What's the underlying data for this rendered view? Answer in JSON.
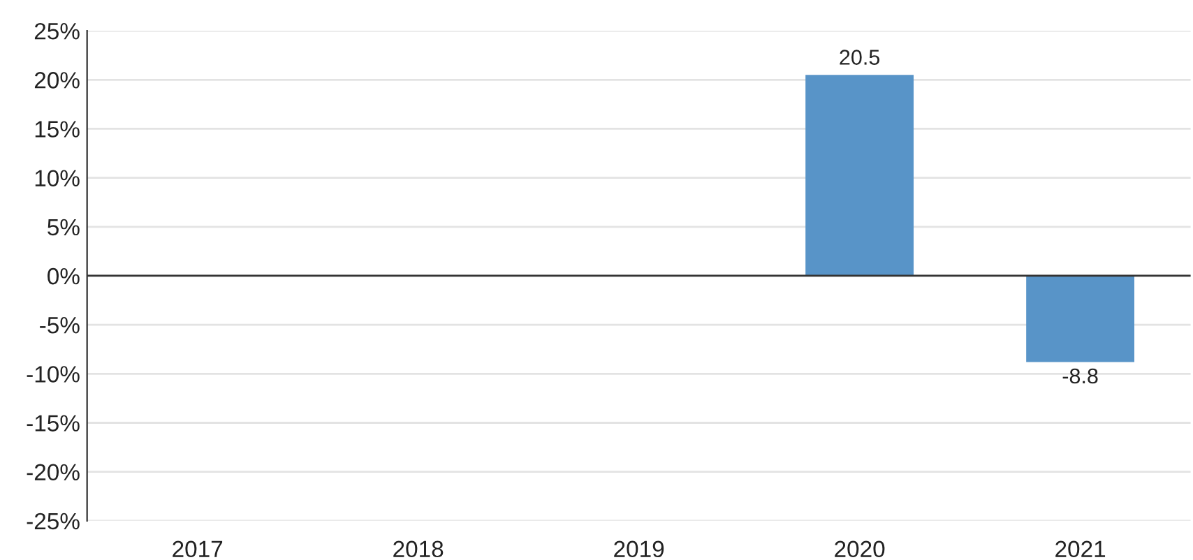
{
  "chart_data": {
    "type": "bar",
    "categories": [
      "2017",
      "2018",
      "2019",
      "2020",
      "2021"
    ],
    "values": [
      null,
      null,
      null,
      20.5,
      -8.8
    ],
    "color": "#5894c8",
    "data_labels": true,
    "ylim": [
      -25,
      25
    ],
    "yticks": [
      {
        "value": -25,
        "label": "-25%"
      },
      {
        "value": -20,
        "label": "-20%"
      },
      {
        "value": -15,
        "label": "-15%"
      },
      {
        "value": -10,
        "label": "-10%"
      },
      {
        "value": -5,
        "label": "-5%"
      },
      {
        "value": 0,
        "label": "0%"
      },
      {
        "value": 5,
        "label": "5%"
      },
      {
        "value": 10,
        "label": "10%"
      },
      {
        "value": 15,
        "label": "15%"
      },
      {
        "value": 20,
        "label": "20%"
      },
      {
        "value": 25,
        "label": "25%"
      }
    ],
    "ref_lines": [
      {
        "axis": "y",
        "value": 0,
        "color": "#333333"
      }
    ],
    "grid": "y"
  }
}
